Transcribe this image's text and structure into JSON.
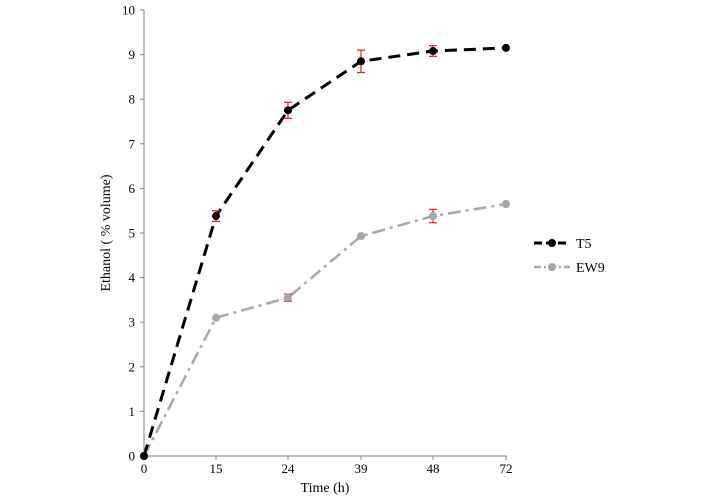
{
  "chart_data": {
    "type": "line",
    "title": "",
    "xlabel": "Time (h)",
    "ylabel": "Ethanol ( % volume)",
    "x": [
      0,
      15,
      24,
      39,
      48,
      72
    ],
    "x_tick_labels": [
      "0",
      "15",
      "24",
      "39",
      "48",
      "72"
    ],
    "ylim": [
      0,
      10
    ],
    "y_ticks": [
      0,
      1,
      2,
      3,
      4,
      5,
      6,
      7,
      8,
      9,
      10
    ],
    "grid": false,
    "legend_position": "right",
    "error_bar_color": "#d9262c",
    "series": [
      {
        "name": "T5",
        "values": [
          0,
          5.38,
          7.75,
          8.85,
          9.08,
          9.15
        ],
        "errors": [
          0,
          0.12,
          0.18,
          0.25,
          0.12,
          0
        ],
        "color": "#000000",
        "line_style": "dashed"
      },
      {
        "name": "EW9",
        "values": [
          0,
          3.1,
          3.55,
          4.93,
          5.38,
          5.65
        ],
        "errors": [
          0,
          0,
          0.08,
          0,
          0.15,
          0
        ],
        "color": "#a6a6a6",
        "line_style": "dash-dot"
      }
    ]
  }
}
